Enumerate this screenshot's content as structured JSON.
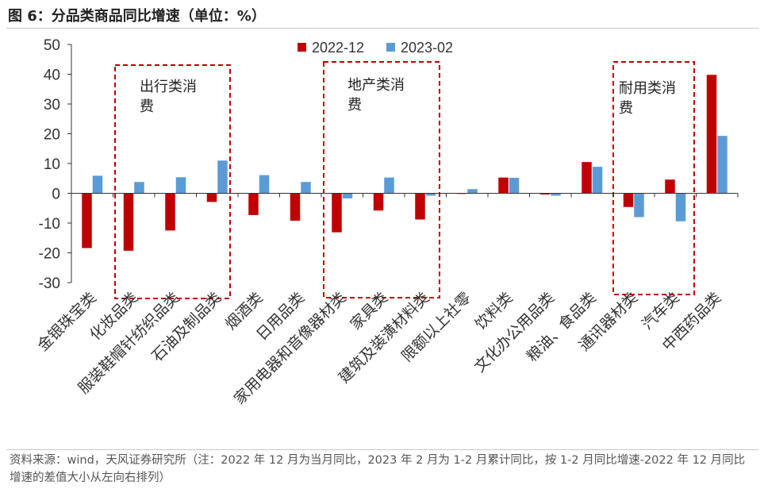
{
  "title": "图 6：分品类商品同比增速（单位：%）",
  "source": "资料来源：wind，天风证券研究所（注：2022 年 12 月为当月同比，2023 年 2 月为 1-2 月累计同比，按 1-2 月同比增速-2022 年 12 月同比增速的差值大小从左向右排列）",
  "colors": {
    "series_2022": "#C00000",
    "series_2023": "#5B9BD5",
    "box": "#C00000"
  },
  "chart_data": {
    "type": "bar",
    "categories": [
      "金银珠宝类",
      "化妆品类",
      "服装鞋帽针纺织品类",
      "石油及制品类",
      "烟酒类",
      "日用品类",
      "家用电器和音像器材类",
      "家具类",
      "建筑及装潢材料类",
      "限额以上社零",
      "饮料类",
      "文化办公用品类",
      "粮油、食品类",
      "通讯器材类",
      "汽车类",
      "中西药品类"
    ],
    "series": [
      {
        "name": "2022-12",
        "values": [
          -18.4,
          -19.3,
          -12.5,
          -2.9,
          -7.3,
          -9.2,
          -13.1,
          -5.8,
          -8.8,
          -0.2,
          5.3,
          -0.4,
          10.5,
          -4.6,
          4.6,
          39.8
        ]
      },
      {
        "name": "2023-02",
        "values": [
          5.9,
          3.8,
          5.4,
          11.0,
          6.1,
          3.8,
          -1.7,
          5.3,
          -0.8,
          1.4,
          5.2,
          -0.8,
          8.9,
          -8.0,
          -9.4,
          19.3
        ]
      }
    ],
    "ylim": [
      -30,
      50
    ],
    "yticks": [
      -30,
      -20,
      -10,
      0,
      10,
      20,
      30,
      40,
      50
    ],
    "legend_position": "top-center",
    "grid": false,
    "annotations": [
      {
        "label": "出行类消费"
      },
      {
        "label": "地产类消费"
      },
      {
        "label": "耐用类消费"
      }
    ]
  }
}
